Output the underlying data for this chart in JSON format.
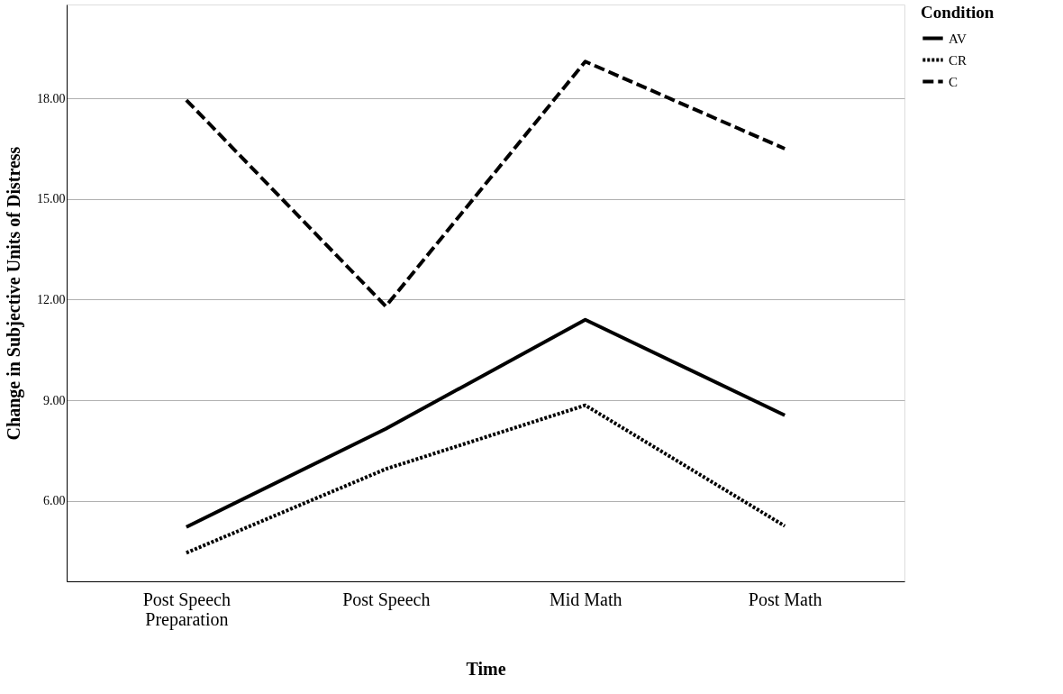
{
  "chart_data": {
    "type": "line",
    "xlabel": "Time",
    "ylabel": "Change in Subjective Units of Distress",
    "legend_title": "Condition",
    "categories": [
      "Post Speech\nPreparation",
      "Post Speech",
      "Mid Math",
      "Post Math"
    ],
    "series": [
      {
        "name": "AV",
        "color": "#000000",
        "line_style": "solid",
        "values": [
          5.22,
          8.15,
          11.4,
          8.55
        ]
      },
      {
        "name": "CR",
        "color": "#000000",
        "line_style": "dotted",
        "values": [
          4.45,
          6.95,
          8.85,
          5.25
        ]
      },
      {
        "name": "C",
        "color": "#000000",
        "line_style": "dashed",
        "values": [
          17.95,
          11.8,
          19.1,
          16.5
        ]
      }
    ],
    "ylim": [
      3.6,
      20.8
    ],
    "yticks": [
      {
        "value": 6,
        "label": "6.00"
      },
      {
        "value": 9,
        "label": "9.00"
      },
      {
        "value": 12,
        "label": "12.00"
      },
      {
        "value": 15,
        "label": "15.00"
      },
      {
        "value": 18,
        "label": "18.00"
      }
    ],
    "grid": "y",
    "legend": "top right",
    "marker": "none"
  }
}
